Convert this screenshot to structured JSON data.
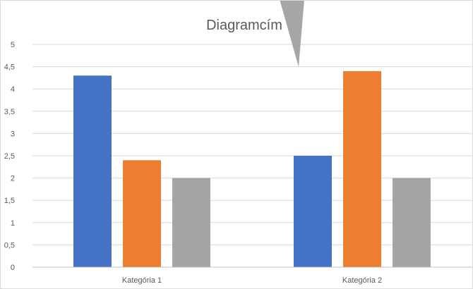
{
  "chart_data": {
    "type": "bar",
    "title": "Diagramcím",
    "categories": [
      "Kategória 1",
      "Kategória 2"
    ],
    "series": [
      {
        "values": [
          4.3,
          2.5
        ],
        "color": "#4472c4"
      },
      {
        "values": [
          2.4,
          4.4
        ],
        "color": "#ed7d31"
      },
      {
        "values": [
          2.0,
          2.0
        ],
        "color": "#a5a5a5"
      }
    ],
    "ylim": [
      0,
      5
    ],
    "yticks": [
      "0",
      "0,5",
      "1",
      "1,5",
      "2",
      "2,5",
      "3",
      "3,5",
      "4",
      "4,5",
      "5"
    ],
    "grid": true,
    "legend": "none"
  },
  "callout": {
    "color": "#a6a6a6"
  }
}
